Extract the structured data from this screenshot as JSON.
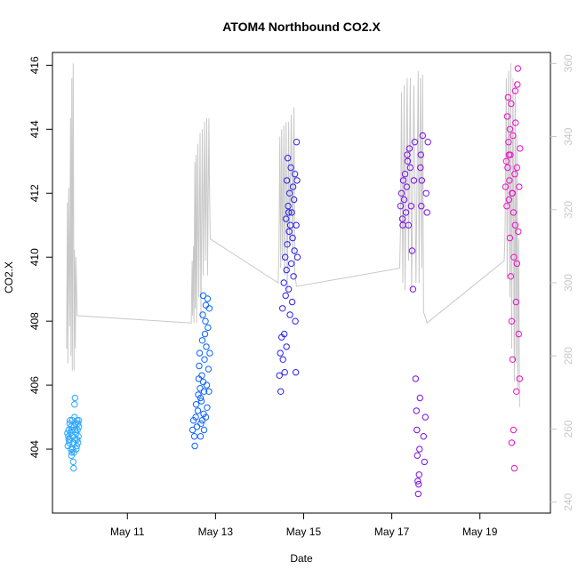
{
  "chart_data": {
    "type": "scatter",
    "title": "ATOM4 Northbound CO2.X",
    "xlabel": "Date",
    "ylabel": "CO2.X",
    "xlim": [
      9.3,
      20.6
    ],
    "ylim": [
      402.0,
      416.4
    ],
    "ylim_right": [
      237.0,
      363.0
    ],
    "x_ticks": [
      {
        "value": 11,
        "label": "May 11"
      },
      {
        "value": 13,
        "label": "May 13"
      },
      {
        "value": 15,
        "label": "May 15"
      },
      {
        "value": 17,
        "label": "May 17"
      },
      {
        "value": 19,
        "label": "May 19"
      }
    ],
    "y_ticks": [
      {
        "value": 404,
        "label": "404"
      },
      {
        "value": 406,
        "label": "406"
      },
      {
        "value": 408,
        "label": "408"
      },
      {
        "value": 410,
        "label": "410"
      },
      {
        "value": 412,
        "label": "412"
      },
      {
        "value": 414,
        "label": "414"
      },
      {
        "value": 416,
        "label": "416"
      }
    ],
    "y_ticks_right": [
      {
        "value": 240,
        "label": "240"
      },
      {
        "value": 260,
        "label": "260"
      },
      {
        "value": 280,
        "label": "280"
      },
      {
        "value": 300,
        "label": "300"
      },
      {
        "value": 320,
        "label": "320"
      },
      {
        "value": 340,
        "label": "340"
      },
      {
        "value": 360,
        "label": "360"
      }
    ],
    "grid": false,
    "legend": "none",
    "series": [
      {
        "color": "#2aa7ff",
        "x_range": [
          9.62,
          9.91
        ],
        "points": [
          [
            9.65,
            404.1
          ],
          [
            9.66,
            404.4
          ],
          [
            9.67,
            404.6
          ],
          [
            9.68,
            404.2
          ],
          [
            9.69,
            404.8
          ],
          [
            9.7,
            404.3
          ],
          [
            9.71,
            404.5
          ],
          [
            9.72,
            404.0
          ],
          [
            9.73,
            403.8
          ],
          [
            9.74,
            404.6
          ],
          [
            9.75,
            404.9
          ],
          [
            9.76,
            404.4
          ],
          [
            9.77,
            403.6
          ],
          [
            9.78,
            403.4
          ],
          [
            9.78,
            404.2
          ],
          [
            9.79,
            404.7
          ],
          [
            9.8,
            405.0
          ],
          [
            9.8,
            405.4
          ],
          [
            9.81,
            405.6
          ],
          [
            9.82,
            404.3
          ],
          [
            9.83,
            404.8
          ],
          [
            9.84,
            404.5
          ],
          [
            9.85,
            404.1
          ],
          [
            9.86,
            404.9
          ],
          [
            9.87,
            404.6
          ],
          [
            9.88,
            404.2
          ],
          [
            9.89,
            404.4
          ],
          [
            9.9,
            404.7
          ],
          [
            9.74,
            403.9
          ],
          [
            9.76,
            404.0
          ],
          [
            9.7,
            404.9
          ],
          [
            9.67,
            404.3
          ],
          [
            9.84,
            404.0
          ],
          [
            9.88,
            404.8
          ],
          [
            9.72,
            404.7
          ],
          [
            9.79,
            403.9
          ],
          [
            9.82,
            404.6
          ],
          [
            9.86,
            404.3
          ],
          [
            9.64,
            404.5
          ],
          [
            9.9,
            404.9
          ]
        ]
      },
      {
        "color": "#0a62ff",
        "x_range": [
          12.45,
          12.88
        ],
        "points": [
          [
            12.48,
            404.6
          ],
          [
            12.5,
            404.9
          ],
          [
            12.52,
            404.4
          ],
          [
            12.53,
            404.1
          ],
          [
            12.55,
            405.0
          ],
          [
            12.56,
            405.4
          ],
          [
            12.58,
            404.7
          ],
          [
            12.6,
            405.2
          ],
          [
            12.61,
            405.7
          ],
          [
            12.62,
            406.2
          ],
          [
            12.63,
            406.6
          ],
          [
            12.64,
            407.0
          ],
          [
            12.65,
            405.9
          ],
          [
            12.66,
            404.4
          ],
          [
            12.67,
            404.8
          ],
          [
            12.68,
            405.5
          ],
          [
            12.69,
            406.3
          ],
          [
            12.7,
            407.4
          ],
          [
            12.71,
            408.2
          ],
          [
            12.72,
            408.8
          ],
          [
            12.73,
            405.1
          ],
          [
            12.74,
            404.6
          ],
          [
            12.75,
            406.8
          ],
          [
            12.76,
            407.6
          ],
          [
            12.77,
            408.0
          ],
          [
            12.78,
            408.5
          ],
          [
            12.79,
            407.2
          ],
          [
            12.8,
            406.0
          ],
          [
            12.81,
            405.3
          ],
          [
            12.82,
            408.7
          ],
          [
            12.83,
            407.8
          ],
          [
            12.84,
            406.5
          ],
          [
            12.85,
            405.8
          ],
          [
            12.86,
            408.4
          ],
          [
            12.87,
            407.0
          ],
          [
            12.66,
            405.6
          ],
          [
            12.7,
            404.9
          ],
          [
            12.74,
            405.8
          ],
          [
            12.78,
            405.0
          ],
          [
            12.72,
            406.1
          ]
        ]
      },
      {
        "color": "#2a1ff0",
        "x_range": [
          14.4,
          14.88
        ],
        "points": [
          [
            14.45,
            406.3
          ],
          [
            14.47,
            407.0
          ],
          [
            14.48,
            405.8
          ],
          [
            14.5,
            407.5
          ],
          [
            14.52,
            408.4
          ],
          [
            14.53,
            406.8
          ],
          [
            14.55,
            409.2
          ],
          [
            14.56,
            407.6
          ],
          [
            14.58,
            410.0
          ],
          [
            14.59,
            408.8
          ],
          [
            14.6,
            411.2
          ],
          [
            14.61,
            409.6
          ],
          [
            14.62,
            412.4
          ],
          [
            14.63,
            410.4
          ],
          [
            14.64,
            413.1
          ],
          [
            14.65,
            411.6
          ],
          [
            14.66,
            409.0
          ],
          [
            14.67,
            410.8
          ],
          [
            14.68,
            412.0
          ],
          [
            14.69,
            408.2
          ],
          [
            14.7,
            411.0
          ],
          [
            14.71,
            412.8
          ],
          [
            14.72,
            409.8
          ],
          [
            14.73,
            411.4
          ],
          [
            14.74,
            408.6
          ],
          [
            14.75,
            410.6
          ],
          [
            14.76,
            412.2
          ],
          [
            14.77,
            409.4
          ],
          [
            14.78,
            411.8
          ],
          [
            14.79,
            410.2
          ],
          [
            14.8,
            412.6
          ],
          [
            14.81,
            408.0
          ],
          [
            14.82,
            406.4
          ],
          [
            14.83,
            411.0
          ],
          [
            14.84,
            413.6
          ],
          [
            14.85,
            412.4
          ],
          [
            14.86,
            410.0
          ],
          [
            14.57,
            406.4
          ],
          [
            14.61,
            407.2
          ],
          [
            14.66,
            411.4
          ]
        ]
      },
      {
        "color": "#7a10e6",
        "x_range": [
          17.15,
          17.85
        ],
        "points": [
          [
            17.2,
            411.6
          ],
          [
            17.22,
            412.0
          ],
          [
            17.24,
            411.2
          ],
          [
            17.26,
            412.4
          ],
          [
            17.28,
            411.8
          ],
          [
            17.3,
            412.6
          ],
          [
            17.32,
            411.4
          ],
          [
            17.34,
            412.2
          ],
          [
            17.36,
            413.0
          ],
          [
            17.38,
            411.0
          ],
          [
            17.4,
            413.4
          ],
          [
            17.42,
            412.8
          ],
          [
            17.44,
            411.6
          ],
          [
            17.46,
            410.2
          ],
          [
            17.48,
            409.0
          ],
          [
            17.5,
            412.4
          ],
          [
            17.52,
            413.6
          ],
          [
            17.54,
            406.2
          ],
          [
            17.56,
            405.2
          ],
          [
            17.57,
            404.6
          ],
          [
            17.58,
            403.8
          ],
          [
            17.59,
            403.0
          ],
          [
            17.6,
            402.6
          ],
          [
            17.61,
            402.9
          ],
          [
            17.62,
            403.2
          ],
          [
            17.63,
            404.0
          ],
          [
            17.64,
            405.6
          ],
          [
            17.65,
            412.8
          ],
          [
            17.66,
            413.2
          ],
          [
            17.67,
            411.6
          ],
          [
            17.68,
            412.4
          ],
          [
            17.7,
            413.8
          ],
          [
            17.72,
            404.4
          ],
          [
            17.74,
            403.6
          ],
          [
            17.76,
            405.0
          ],
          [
            17.78,
            412.0
          ],
          [
            17.8,
            411.4
          ],
          [
            17.82,
            413.6
          ],
          [
            17.25,
            411.0
          ],
          [
            17.35,
            413.2
          ]
        ]
      },
      {
        "color": "#ee10c8",
        "x_range": [
          19.55,
          19.95
        ],
        "points": [
          [
            19.58,
            412.2
          ],
          [
            19.6,
            413.0
          ],
          [
            19.61,
            411.6
          ],
          [
            19.62,
            414.4
          ],
          [
            19.63,
            412.8
          ],
          [
            19.64,
            415.0
          ],
          [
            19.65,
            413.6
          ],
          [
            19.66,
            411.8
          ],
          [
            19.67,
            412.4
          ],
          [
            19.68,
            410.6
          ],
          [
            19.69,
            413.2
          ],
          [
            19.7,
            409.4
          ],
          [
            19.71,
            414.8
          ],
          [
            19.72,
            408.0
          ],
          [
            19.73,
            412.0
          ],
          [
            19.74,
            406.8
          ],
          [
            19.75,
            413.8
          ],
          [
            19.76,
            404.6
          ],
          [
            19.77,
            410.0
          ],
          [
            19.78,
            403.4
          ],
          [
            19.79,
            412.6
          ],
          [
            19.8,
            411.0
          ],
          [
            19.81,
            414.2
          ],
          [
            19.82,
            408.6
          ],
          [
            19.83,
            405.8
          ],
          [
            19.84,
            412.8
          ],
          [
            19.85,
            415.4
          ],
          [
            19.86,
            415.9
          ],
          [
            19.87,
            410.8
          ],
          [
            19.88,
            407.6
          ],
          [
            19.89,
            412.2
          ],
          [
            19.9,
            406.2
          ],
          [
            19.91,
            413.4
          ],
          [
            19.74,
            412.0
          ],
          [
            19.68,
            414.0
          ],
          [
            19.76,
            411.4
          ],
          [
            19.8,
            415.2
          ],
          [
            19.84,
            409.8
          ],
          [
            19.72,
            404.2
          ],
          [
            19.66,
            413.2
          ]
        ]
      }
    ],
    "line_series": {
      "color": "#c8c8c8",
      "axis": "right",
      "points": [
        [
          9.62,
          282
        ],
        [
          9.64,
          322
        ],
        [
          9.65,
          278
        ],
        [
          9.67,
          326
        ],
        [
          9.69,
          288
        ],
        [
          9.71,
          345
        ],
        [
          9.72,
          280
        ],
        [
          9.74,
          356
        ],
        [
          9.75,
          276
        ],
        [
          9.77,
          360
        ],
        [
          9.79,
          276
        ],
        [
          9.8,
          309
        ],
        [
          9.82,
          282
        ],
        [
          9.83,
          307
        ],
        [
          9.86,
          291
        ],
        [
          12.45,
          289
        ],
        [
          12.47,
          306
        ],
        [
          12.48,
          291
        ],
        [
          12.5,
          310
        ],
        [
          12.51,
          289
        ],
        [
          12.53,
          333
        ],
        [
          12.54,
          293
        ],
        [
          12.56,
          335
        ],
        [
          12.57,
          289
        ],
        [
          12.6,
          338
        ],
        [
          12.62,
          296
        ],
        [
          12.65,
          341
        ],
        [
          12.67,
          290
        ],
        [
          12.7,
          342
        ],
        [
          12.72,
          302
        ],
        [
          12.75,
          344
        ],
        [
          12.77,
          306
        ],
        [
          12.8,
          345
        ],
        [
          12.82,
          302
        ],
        [
          12.85,
          345
        ],
        [
          12.86,
          330
        ],
        [
          12.88,
          312
        ],
        [
          14.42,
          300
        ],
        [
          14.44,
          308
        ],
        [
          14.46,
          340
        ],
        [
          14.48,
          304
        ],
        [
          14.5,
          342
        ],
        [
          14.52,
          306
        ],
        [
          14.55,
          343
        ],
        [
          14.57,
          302
        ],
        [
          14.6,
          344
        ],
        [
          14.63,
          298
        ],
        [
          14.66,
          344
        ],
        [
          14.68,
          310
        ],
        [
          14.72,
          346
        ],
        [
          14.75,
          308
        ],
        [
          14.78,
          348
        ],
        [
          14.8,
          302
        ],
        [
          14.84,
          299
        ],
        [
          17.18,
          304
        ],
        [
          17.2,
          316
        ],
        [
          17.22,
          352
        ],
        [
          17.25,
          300
        ],
        [
          17.28,
          354
        ],
        [
          17.3,
          298
        ],
        [
          17.35,
          356
        ],
        [
          17.38,
          306
        ],
        [
          17.42,
          356
        ],
        [
          17.45,
          298
        ],
        [
          17.5,
          354
        ],
        [
          17.55,
          300
        ],
        [
          17.6,
          358
        ],
        [
          17.62,
          300
        ],
        [
          17.65,
          356
        ],
        [
          17.68,
          304
        ],
        [
          17.7,
          357
        ],
        [
          17.72,
          292
        ],
        [
          17.78,
          290
        ],
        [
          17.8,
          289
        ],
        [
          19.55,
          306
        ],
        [
          19.57,
          314
        ],
        [
          19.6,
          356
        ],
        [
          19.62,
          301
        ],
        [
          19.65,
          358
        ],
        [
          19.68,
          296
        ],
        [
          19.7,
          360
        ],
        [
          19.72,
          282
        ],
        [
          19.75,
          356
        ],
        [
          19.78,
          273
        ],
        [
          19.8,
          355
        ],
        [
          19.82,
          278
        ],
        [
          19.84,
          340
        ],
        [
          19.86,
          271
        ],
        [
          19.88,
          312
        ],
        [
          19.9,
          266
        ]
      ]
    }
  }
}
